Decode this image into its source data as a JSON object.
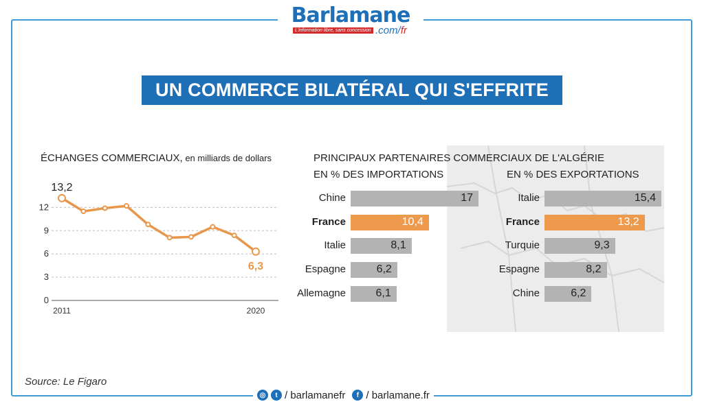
{
  "brand": {
    "name": "Barlamane",
    "tagline": "L'information libre, sans concession",
    "domain_prefix": ".com/",
    "domain_suffix": "fr"
  },
  "title": "UN COMMERCE BILATÉRAL QUI S'EFFRITE",
  "line_chart": {
    "heading_main": "ÉCHANGES COMMERCIAUX,",
    "heading_unit": " en milliards  de dollars"
  },
  "bars_heading": {
    "line1": "PRINCIPAUX PARTENAIRES COMMERCIAUX DE L'ALGÉRIE",
    "imports_label": "EN % DES IMPORTATIONS",
    "exports_label": "EN % DES EXPORTATIONS"
  },
  "colors": {
    "blue": "#1f6fb7",
    "orange": "#e8974a",
    "gray_bar": "#b3b3b3",
    "highlight_bar": "#ee9a4d"
  },
  "source": "Source: Le Figaro",
  "footer": {
    "social_handle": "/ barlamanefr",
    "site": "/ barlamane.fr",
    "icons": [
      "instagram-icon",
      "twitter-icon",
      "facebook-icon"
    ]
  },
  "chart_data": [
    {
      "type": "line",
      "title": "ÉCHANGES COMMERCIAUX, en milliards  de dollars",
      "x": [
        2011,
        2012,
        2013,
        2014,
        2015,
        2016,
        2017,
        2018,
        2019,
        2020
      ],
      "x_tick_labels": [
        "2011",
        "2020"
      ],
      "series": [
        {
          "values": [
            13.2,
            11.5,
            11.9,
            12.2,
            9.8,
            8.1,
            8.2,
            9.5,
            8.4,
            6.3
          ]
        }
      ],
      "point_labels": {
        "first": "13,2",
        "last": "6,3"
      },
      "y_ticks": [
        0,
        3,
        6,
        9,
        12
      ],
      "y_tick_labels": [
        "0",
        "3",
        "6",
        "9",
        "12"
      ],
      "ylim": [
        0,
        14
      ],
      "grid": true
    },
    {
      "type": "bar",
      "title": "EN % DES IMPORTATIONS",
      "categories": [
        "Chine",
        "France",
        "Italie",
        "Espagne",
        "Allemagne"
      ],
      "values": [
        17,
        10.4,
        8.1,
        6.2,
        6.1
      ],
      "value_labels": [
        "17",
        "10,4",
        "8,1",
        "6,2",
        "6,1"
      ],
      "highlight": "France",
      "xlim": [
        0,
        17
      ]
    },
    {
      "type": "bar",
      "title": "EN % DES EXPORTATIONS",
      "categories": [
        "Italie",
        "France",
        "Turquie",
        "Espagne",
        "Chine"
      ],
      "values": [
        15.4,
        13.2,
        9.3,
        8.2,
        6.2
      ],
      "value_labels": [
        "15,4",
        "13,2",
        "9,3",
        "8,2",
        "6,2"
      ],
      "highlight": "France",
      "xlim": [
        0,
        15.4
      ]
    }
  ]
}
